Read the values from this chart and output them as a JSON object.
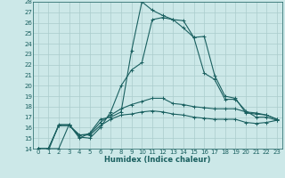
{
  "xlabel": "Humidex (Indice chaleur)",
  "ylabel": "",
  "xlim": [
    -0.5,
    23.5
  ],
  "ylim": [
    14,
    28
  ],
  "background_color": "#cce8e8",
  "grid_color": "#aacccc",
  "line_color": "#1a6060",
  "x_ticks": [
    0,
    1,
    2,
    3,
    4,
    5,
    6,
    7,
    8,
    9,
    10,
    11,
    12,
    13,
    14,
    15,
    16,
    17,
    18,
    19,
    20,
    21,
    22,
    23
  ],
  "y_ticks": [
    14,
    15,
    16,
    17,
    18,
    19,
    20,
    21,
    22,
    23,
    24,
    25,
    26,
    27,
    28
  ],
  "series": [
    [
      14.0,
      14.0,
      14.0,
      16.3,
      15.1,
      15.0,
      16.0,
      17.5,
      20.0,
      21.5,
      22.2,
      26.3,
      26.5,
      26.3,
      26.2,
      24.6,
      24.7,
      21.0,
      19.0,
      18.8,
      17.4,
      17.3,
      17.2,
      16.8
    ],
    [
      14.0,
      13.8,
      16.3,
      16.3,
      15.0,
      15.5,
      16.8,
      17.0,
      17.5,
      23.3,
      28.0,
      27.2,
      26.7,
      26.3,
      25.5,
      24.6,
      21.2,
      20.6,
      18.7,
      18.7,
      17.6,
      17.0,
      17.0,
      16.7
    ],
    [
      14.0,
      14.0,
      16.2,
      16.2,
      15.3,
      15.4,
      16.5,
      17.2,
      17.8,
      18.2,
      18.5,
      18.8,
      18.8,
      18.3,
      18.2,
      18.0,
      17.9,
      17.8,
      17.8,
      17.8,
      17.5,
      17.4,
      17.2,
      16.8
    ],
    [
      14.0,
      14.0,
      16.2,
      16.2,
      15.3,
      15.3,
      16.2,
      16.8,
      17.2,
      17.3,
      17.5,
      17.6,
      17.5,
      17.3,
      17.2,
      17.0,
      16.9,
      16.8,
      16.8,
      16.8,
      16.5,
      16.4,
      16.5,
      16.7
    ]
  ],
  "tick_fontsize": 5.0,
  "xlabel_fontsize": 6.0
}
